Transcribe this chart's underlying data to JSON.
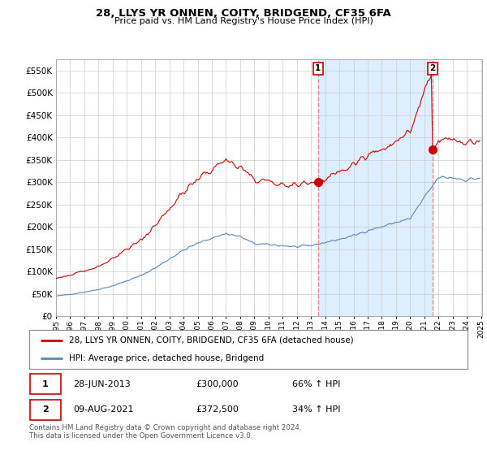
{
  "title": "28, LLYS YR ONNEN, COITY, BRIDGEND, CF35 6FA",
  "subtitle": "Price paid vs. HM Land Registry's House Price Index (HPI)",
  "ylim": [
    0,
    575000
  ],
  "yticks": [
    0,
    50000,
    100000,
    150000,
    200000,
    250000,
    300000,
    350000,
    400000,
    450000,
    500000,
    550000
  ],
  "x_start_year": 1995,
  "x_end_year": 2025,
  "legend_line1": "28, LLYS YR ONNEN, COITY, BRIDGEND, CF35 6FA (detached house)",
  "legend_line2": "HPI: Average price, detached house, Bridgend",
  "sale1_label": "1",
  "sale1_date": "28-JUN-2013",
  "sale1_price": "£300,000",
  "sale1_hpi": "66% ↑ HPI",
  "sale1_year": 2013.5,
  "sale1_value": 300000,
  "sale2_label": "2",
  "sale2_date": "09-AUG-2021",
  "sale2_price": "£372,500",
  "sale2_hpi": "34% ↑ HPI",
  "sale2_year": 2021.583,
  "sale2_value": 372500,
  "red_color": "#cc0000",
  "blue_color": "#5588bb",
  "vline_color": "#ee8888",
  "shade_color": "#ddeeff",
  "background_color": "#ffffff",
  "grid_color": "#cccccc",
  "footer_text": "Contains HM Land Registry data © Crown copyright and database right 2024.\nThis data is licensed under the Open Government Licence v3.0."
}
